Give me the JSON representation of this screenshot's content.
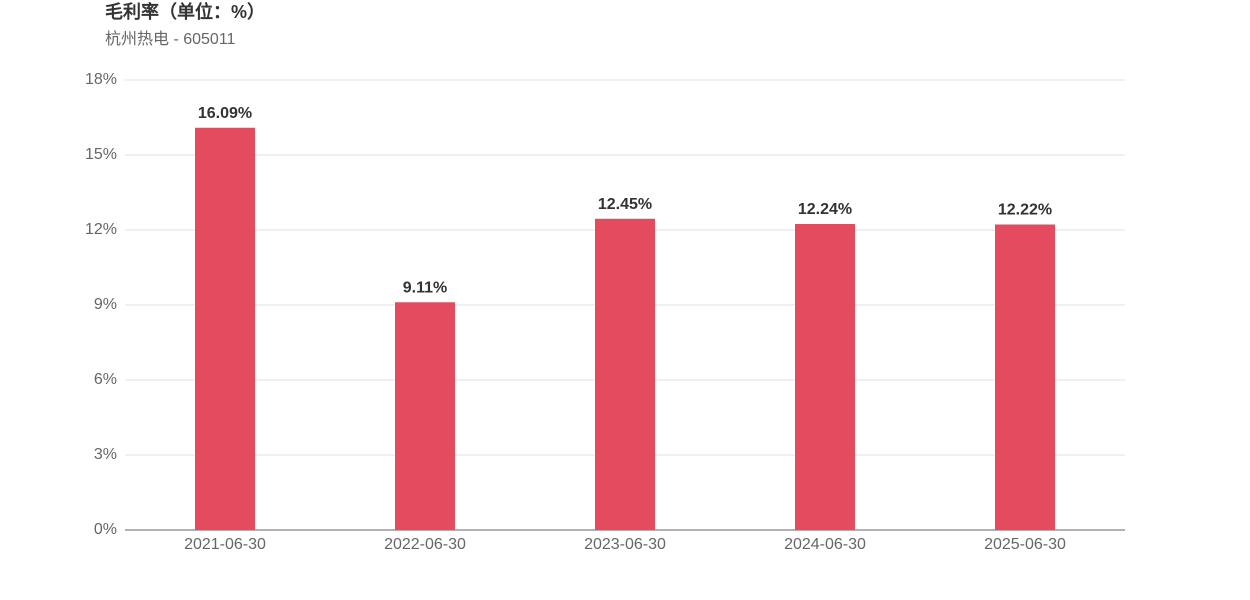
{
  "chart_data": {
    "type": "bar",
    "title": "毛利率（单位：%）",
    "subtitle": "杭州热电 - 605011",
    "categories": [
      "2021-06-30",
      "2022-06-30",
      "2023-06-30",
      "2024-06-30",
      "2025-06-30"
    ],
    "values": [
      16.09,
      9.11,
      12.45,
      12.24,
      12.22
    ],
    "value_labels": [
      "16.09%",
      "9.11%",
      "12.45%",
      "12.24%",
      "12.22%"
    ],
    "color": "#e54b5e",
    "ylim": [
      0,
      18
    ],
    "yticks": [
      {
        "value": 0,
        "label": "0%"
      },
      {
        "value": 3,
        "label": "3%"
      },
      {
        "value": 6,
        "label": "6%"
      },
      {
        "value": 9,
        "label": "9%"
      },
      {
        "value": 12,
        "label": "12%"
      },
      {
        "value": 15,
        "label": "15%"
      },
      {
        "value": 18,
        "label": "18%"
      }
    ],
    "grid": true
  }
}
